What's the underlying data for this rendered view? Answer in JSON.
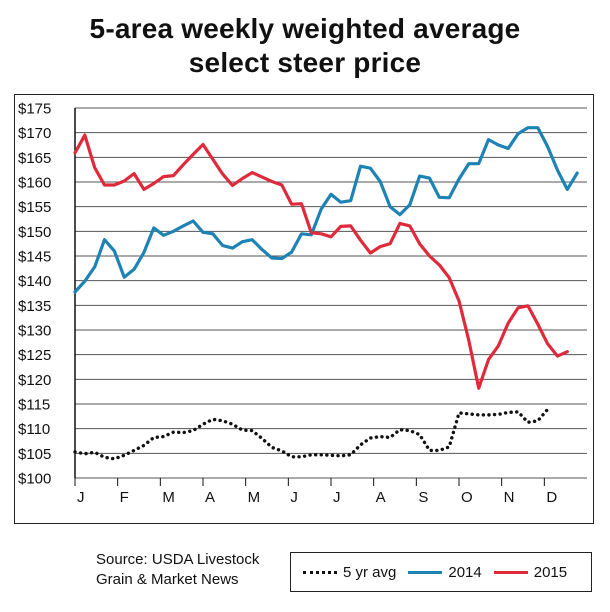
{
  "title_line1": "5-area weekly weighted average",
  "title_line2": "select steer price",
  "source_line1": "Source: USDA Livestock",
  "source_line2": "Grain & Market News",
  "chart_data": {
    "type": "line",
    "title": "5-area weekly weighted average select steer price",
    "xlabel": "",
    "ylabel": "",
    "ylim": [
      100,
      175
    ],
    "y_ticks": [
      "$100",
      "$105",
      "$110",
      "$115",
      "$120",
      "$125",
      "$130",
      "$135",
      "$140",
      "$145",
      "$150",
      "$155",
      "$160",
      "$165",
      "$170",
      "$175"
    ],
    "x_ticks": [
      "J",
      "F",
      "M",
      "A",
      "M",
      "J",
      "J",
      "A",
      "S",
      "O",
      "N",
      "D"
    ],
    "x_unit": "week of year",
    "grid": "horizontal",
    "legend_position": "bottom-right",
    "series": [
      {
        "name": "5 yr avg",
        "color": "#111111",
        "style": "dotted",
        "values": [
          105.3,
          104.9,
          105.2,
          104.2,
          103.9,
          104.6,
          105.6,
          106.6,
          108.2,
          108.4,
          109.3,
          109.2,
          109.6,
          110.9,
          111.9,
          111.6,
          110.9,
          109.7,
          109.6,
          108.0,
          106.2,
          105.5,
          104.3,
          104.3,
          104.7,
          104.7,
          104.6,
          104.5,
          104.7,
          106.7,
          108.1,
          108.4,
          108.2,
          109.8,
          109.6,
          108.8,
          105.6,
          105.6,
          106.3,
          113.2,
          113.0,
          112.8,
          112.8,
          112.9,
          113.3,
          113.4,
          111.3,
          111.6,
          113.9
        ]
      },
      {
        "name": "2014",
        "color": "#1d83b5",
        "style": "solid",
        "values": [
          137.7,
          139.9,
          142.8,
          148.3,
          146.0,
          140.7,
          142.3,
          145.7,
          150.7,
          149.2,
          150.0,
          151.1,
          152.1,
          149.8,
          149.5,
          147.1,
          146.6,
          147.9,
          148.3,
          146.3,
          144.6,
          144.5,
          145.8,
          149.5,
          149.3,
          154.5,
          157.5,
          155.9,
          156.2,
          163.2,
          162.8,
          160.1,
          155.0,
          153.4,
          155.4,
          161.2,
          160.8,
          156.9,
          156.8,
          160.6,
          163.7,
          163.7,
          168.6,
          167.5,
          166.8,
          169.8,
          171.0,
          171.0,
          167.2,
          162.4,
          158.5,
          161.8
        ]
      },
      {
        "name": "2015",
        "color": "#df2a3c",
        "style": "solid",
        "values": [
          165.9,
          169.5,
          162.9,
          159.4,
          159.4,
          160.2,
          161.7,
          158.5,
          159.7,
          161.1,
          161.3,
          163.5,
          165.6,
          167.6,
          164.6,
          161.6,
          159.3,
          160.7,
          161.9,
          161.0,
          160.1,
          159.4,
          155.5,
          155.6,
          149.7,
          149.5,
          148.9,
          151.0,
          151.1,
          148.2,
          145.6,
          146.9,
          147.5,
          151.6,
          151.1,
          147.5,
          145.0,
          143.2,
          140.6,
          135.9,
          127.9,
          118.2,
          124.0,
          126.8,
          131.4,
          134.5,
          134.9,
          131.2,
          127.2,
          124.7,
          125.6
        ]
      }
    ]
  }
}
